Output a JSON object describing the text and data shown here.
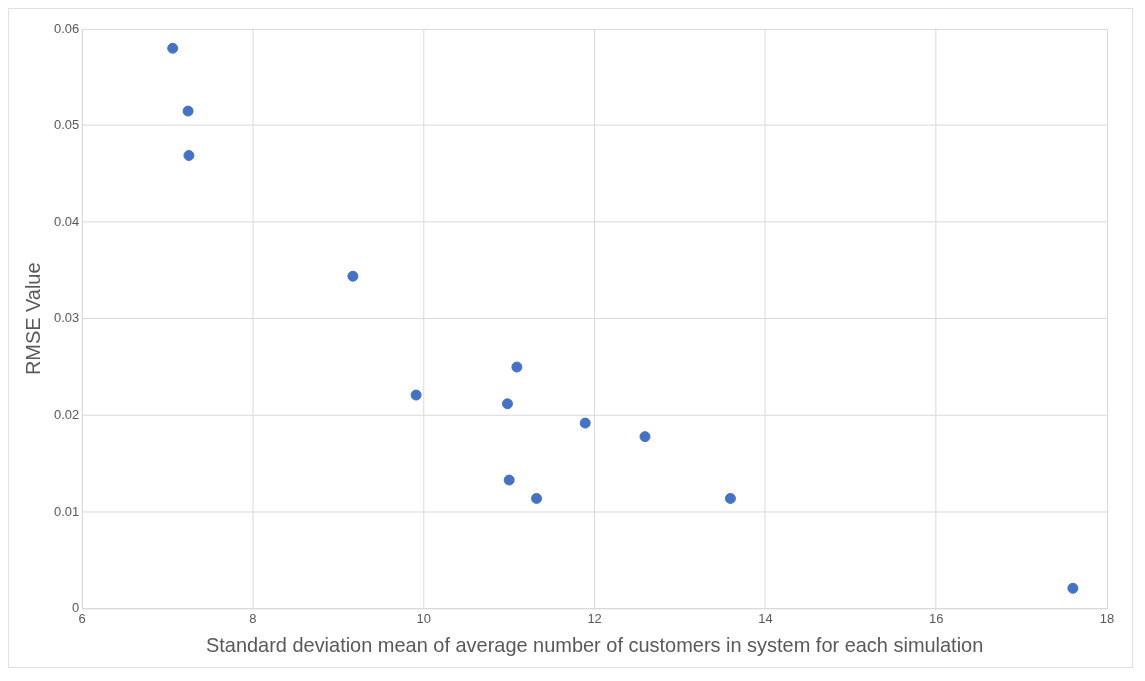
{
  "chart_data": {
    "type": "scatter",
    "xlabel": "Standard deviation mean of average number of customers in system for each simulation",
    "ylabel": "RMSE Value",
    "x": [
      7.06,
      7.24,
      7.25,
      9.17,
      9.91,
      11.09,
      10.98,
      11.89,
      12.59,
      11.0,
      11.32,
      13.59,
      17.6
    ],
    "values": [
      0.058,
      0.0515,
      0.0469,
      0.0344,
      0.0221,
      0.025,
      0.0212,
      0.0192,
      0.0178,
      0.0133,
      0.0114,
      0.0114,
      0.0021
    ],
    "color": "#4472c4",
    "marker": "circle",
    "xlim": [
      6,
      18
    ],
    "xticks": [
      6,
      8,
      10,
      12,
      14,
      16,
      18
    ],
    "ylim": [
      0,
      0.06
    ],
    "yticks": [
      0,
      0.01,
      0.02,
      0.03,
      0.04,
      0.05,
      0.06
    ],
    "grid": true,
    "legend": false
  }
}
